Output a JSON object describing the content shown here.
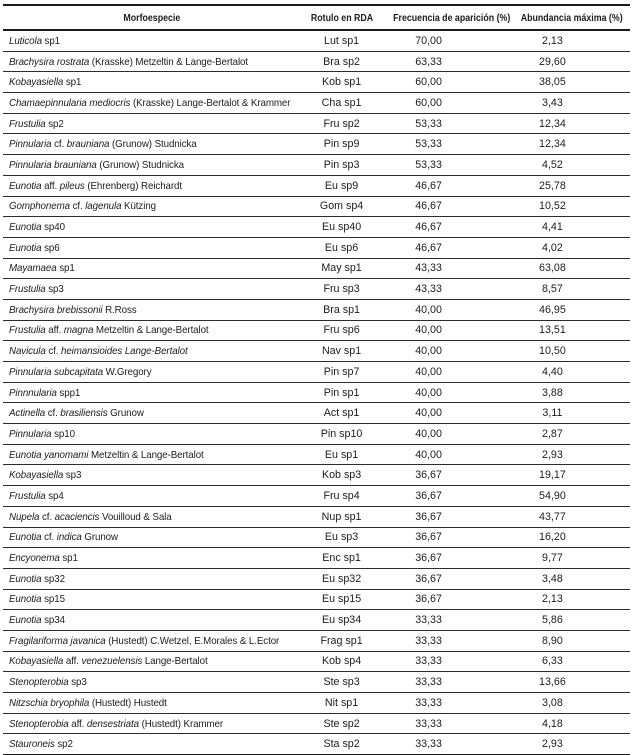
{
  "colors": {
    "background": "#ffffff",
    "text": "#1c1c1c",
    "rule": "#1b1b1b"
  },
  "table": {
    "columns": [
      {
        "label": "Morfoespecie"
      },
      {
        "label": "Rotulo en RDA"
      },
      {
        "label": "Frecuencia de aparición (%)"
      },
      {
        "label": "Abundancia máxima (%)"
      }
    ],
    "rows": [
      {
        "name_parts": [
          {
            "t": "Luticola",
            "i": true
          },
          {
            "t": " sp1",
            "i": false
          }
        ],
        "rda_label": "Lut sp1",
        "frequency": "70,00",
        "max_abundance": "2,13"
      },
      {
        "name_parts": [
          {
            "t": "Brachysira rostrata",
            "i": true
          },
          {
            "t": " (Krasske) Metzeltin & Lange-Bertalot",
            "i": false
          }
        ],
        "rda_label": "Bra sp2",
        "frequency": "63,33",
        "max_abundance": "29,60"
      },
      {
        "name_parts": [
          {
            "t": "Kobayasiella",
            "i": true
          },
          {
            "t": " sp1",
            "i": false
          }
        ],
        "rda_label": "Kob sp1",
        "frequency": "60,00",
        "max_abundance": "38,05"
      },
      {
        "name_parts": [
          {
            "t": "Chamaepinnularia mediocris",
            "i": true
          },
          {
            "t": " (Krasske) Lange-Bertalot & Krammer",
            "i": false
          }
        ],
        "rda_label": "Cha sp1",
        "frequency": "60,00",
        "max_abundance": "3,43"
      },
      {
        "name_parts": [
          {
            "t": "Frustulia",
            "i": true
          },
          {
            "t": " sp2",
            "i": false
          }
        ],
        "rda_label": "Fru sp2",
        "frequency": "53,33",
        "max_abundance": "12,34"
      },
      {
        "name_parts": [
          {
            "t": "Pinnularia",
            "i": true
          },
          {
            "t": " cf. ",
            "i": false
          },
          {
            "t": "brauniana",
            "i": true
          },
          {
            "t": " (Grunow) Studnicka",
            "i": false
          }
        ],
        "rda_label": "Pin sp9",
        "frequency": "53,33",
        "max_abundance": "12,34"
      },
      {
        "name_parts": [
          {
            "t": "Pinnularia brauniana",
            "i": true
          },
          {
            "t": " (Grunow) Studnicka",
            "i": false
          }
        ],
        "rda_label": "Pin sp3",
        "frequency": "53,33",
        "max_abundance": "4,52"
      },
      {
        "name_parts": [
          {
            "t": "Eunotia",
            "i": true
          },
          {
            "t": " aff. ",
            "i": false
          },
          {
            "t": "pileus",
            "i": true
          },
          {
            "t": " (Ehrenberg) Reichardt",
            "i": false
          }
        ],
        "rda_label": "Eu sp9",
        "frequency": "46,67",
        "max_abundance": "25,78"
      },
      {
        "name_parts": [
          {
            "t": "Gomphonema",
            "i": true
          },
          {
            "t": " cf. ",
            "i": false
          },
          {
            "t": "lagenula",
            "i": true
          },
          {
            "t": " Kützing",
            "i": false
          }
        ],
        "rda_label": "Gom sp4",
        "frequency": "46,67",
        "max_abundance": "10,52"
      },
      {
        "name_parts": [
          {
            "t": "Eunotia",
            "i": true
          },
          {
            "t": " sp40",
            "i": false
          }
        ],
        "rda_label": "Eu sp40",
        "frequency": "46,67",
        "max_abundance": "4,41"
      },
      {
        "name_parts": [
          {
            "t": "Eunotia",
            "i": true
          },
          {
            "t": " sp6",
            "i": false
          }
        ],
        "rda_label": "Eu sp6",
        "frequency": "46,67",
        "max_abundance": "4,02"
      },
      {
        "name_parts": [
          {
            "t": "Mayamaea",
            "i": true
          },
          {
            "t": " sp1",
            "i": false
          }
        ],
        "rda_label": "May sp1",
        "frequency": "43,33",
        "max_abundance": "63,08"
      },
      {
        "name_parts": [
          {
            "t": "Frustulia",
            "i": true
          },
          {
            "t": " sp3",
            "i": false
          }
        ],
        "rda_label": "Fru sp3",
        "frequency": "43,33",
        "max_abundance": "8,57"
      },
      {
        "name_parts": [
          {
            "t": "Brachysira brebissonii",
            "i": true
          },
          {
            "t": " R.Ross",
            "i": false
          }
        ],
        "rda_label": "Bra sp1",
        "frequency": "40,00",
        "max_abundance": "46,95"
      },
      {
        "name_parts": [
          {
            "t": "Frustulia",
            "i": true
          },
          {
            "t": " aff. ",
            "i": false
          },
          {
            "t": "magna",
            "i": true
          },
          {
            "t": " Metzeltin & Lange-Bertalot",
            "i": false
          }
        ],
        "rda_label": "Fru sp6",
        "frequency": "40,00",
        "max_abundance": "13,51"
      },
      {
        "name_parts": [
          {
            "t": "Navicula",
            "i": true
          },
          {
            "t": " cf. ",
            "i": false
          },
          {
            "t": "heimansioides Lange-Bertalot",
            "i": true
          }
        ],
        "rda_label": "Nav sp1",
        "frequency": "40,00",
        "max_abundance": "10,50"
      },
      {
        "name_parts": [
          {
            "t": "Pinnularia subcapitata",
            "i": true
          },
          {
            "t": " W.Gregory",
            "i": false
          }
        ],
        "rda_label": "Pin sp7",
        "frequency": "40,00",
        "max_abundance": "4,40"
      },
      {
        "name_parts": [
          {
            "t": "Pinnnularia",
            "i": true
          },
          {
            "t": " spp1",
            "i": false
          }
        ],
        "rda_label": "Pin sp1",
        "frequency": "40,00",
        "max_abundance": "3,88"
      },
      {
        "name_parts": [
          {
            "t": "Actinella",
            "i": true
          },
          {
            "t": " cf. ",
            "i": false
          },
          {
            "t": "brasiliensis",
            "i": true
          },
          {
            "t": " Grunow",
            "i": false
          }
        ],
        "rda_label": "Act sp1",
        "frequency": "40,00",
        "max_abundance": "3,11"
      },
      {
        "name_parts": [
          {
            "t": "Pinnularia",
            "i": true
          },
          {
            "t": " sp10",
            "i": false
          }
        ],
        "rda_label": "Pin sp10",
        "frequency": "40,00",
        "max_abundance": "2,87"
      },
      {
        "name_parts": [
          {
            "t": "Eunotia yanomami",
            "i": true
          },
          {
            "t": " Metzeltin & Lange-Bertalot",
            "i": false
          }
        ],
        "rda_label": "Eu sp1",
        "frequency": "40,00",
        "max_abundance": "2,93"
      },
      {
        "name_parts": [
          {
            "t": "Kobayasiella",
            "i": true
          },
          {
            "t": " sp3",
            "i": false
          }
        ],
        "rda_label": "Kob sp3",
        "frequency": "36,67",
        "max_abundance": "19,17"
      },
      {
        "name_parts": [
          {
            "t": "Frustulia",
            "i": true
          },
          {
            "t": " sp4",
            "i": false
          }
        ],
        "rda_label": "Fru sp4",
        "frequency": "36,67",
        "max_abundance": "54,90"
      },
      {
        "name_parts": [
          {
            "t": "Nupela",
            "i": true
          },
          {
            "t": " cf. ",
            "i": false
          },
          {
            "t": "acaciencis",
            "i": true
          },
          {
            "t": " Vouilloud & Sala",
            "i": false
          }
        ],
        "rda_label": "Nup sp1",
        "frequency": "36,67",
        "max_abundance": "43,77"
      },
      {
        "name_parts": [
          {
            "t": "Eunotia",
            "i": true
          },
          {
            "t": " cf. ",
            "i": false
          },
          {
            "t": "indica",
            "i": true
          },
          {
            "t": " Grunow",
            "i": false
          }
        ],
        "rda_label": "Eu sp3",
        "frequency": "36,67",
        "max_abundance": "16,20"
      },
      {
        "name_parts": [
          {
            "t": "Encyonema",
            "i": true
          },
          {
            "t": " sp1",
            "i": false
          }
        ],
        "rda_label": "Enc sp1",
        "frequency": "36,67",
        "max_abundance": "9,77"
      },
      {
        "name_parts": [
          {
            "t": "Eunotia",
            "i": true
          },
          {
            "t": " sp32",
            "i": false
          }
        ],
        "rda_label": "Eu sp32",
        "frequency": "36,67",
        "max_abundance": "3,48"
      },
      {
        "name_parts": [
          {
            "t": "Eunotia",
            "i": true
          },
          {
            "t": " sp15",
            "i": false
          }
        ],
        "rda_label": "Eu sp15",
        "frequency": "36,67",
        "max_abundance": "2,13"
      },
      {
        "name_parts": [
          {
            "t": "Eunotia",
            "i": true
          },
          {
            "t": " sp34",
            "i": false
          }
        ],
        "rda_label": "Eu sp34",
        "frequency": "33,33",
        "max_abundance": "5,86"
      },
      {
        "name_parts": [
          {
            "t": "Fragilariforma javanica",
            "i": true
          },
          {
            "t": " (Hustedt) C.Wetzel, E.Morales & L.Ector",
            "i": false
          }
        ],
        "rda_label": "Frag sp1",
        "frequency": "33,33",
        "max_abundance": "8,90"
      },
      {
        "name_parts": [
          {
            "t": "Kobayasiella",
            "i": true
          },
          {
            "t": " aff. ",
            "i": false
          },
          {
            "t": "venezuelensis",
            "i": true
          },
          {
            "t": " Lange-Bertalot",
            "i": false
          }
        ],
        "rda_label": "Kob sp4",
        "frequency": "33,33",
        "max_abundance": "6,33"
      },
      {
        "name_parts": [
          {
            "t": "Stenopterobia",
            "i": true
          },
          {
            "t": " sp3",
            "i": false
          }
        ],
        "rda_label": "Ste sp3",
        "frequency": "33,33",
        "max_abundance": "13,66"
      },
      {
        "name_parts": [
          {
            "t": "Nitzschia bryophila",
            "i": true
          },
          {
            "t": " (Hustedt) Hustedt",
            "i": false
          }
        ],
        "rda_label": "Nit sp1",
        "frequency": "33,33",
        "max_abundance": "3,08"
      },
      {
        "name_parts": [
          {
            "t": "Stenopterobia",
            "i": true
          },
          {
            "t": " aff. ",
            "i": false
          },
          {
            "t": "densestriata",
            "i": true
          },
          {
            "t": " (Hustedt) Krammer",
            "i": false
          }
        ],
        "rda_label": "Ste sp2",
        "frequency": "33,33",
        "max_abundance": "4,18"
      },
      {
        "name_parts": [
          {
            "t": "Stauroneis",
            "i": true
          },
          {
            "t": " sp2",
            "i": false
          }
        ],
        "rda_label": "Sta sp2",
        "frequency": "33,33",
        "max_abundance": "2,93"
      }
    ]
  }
}
